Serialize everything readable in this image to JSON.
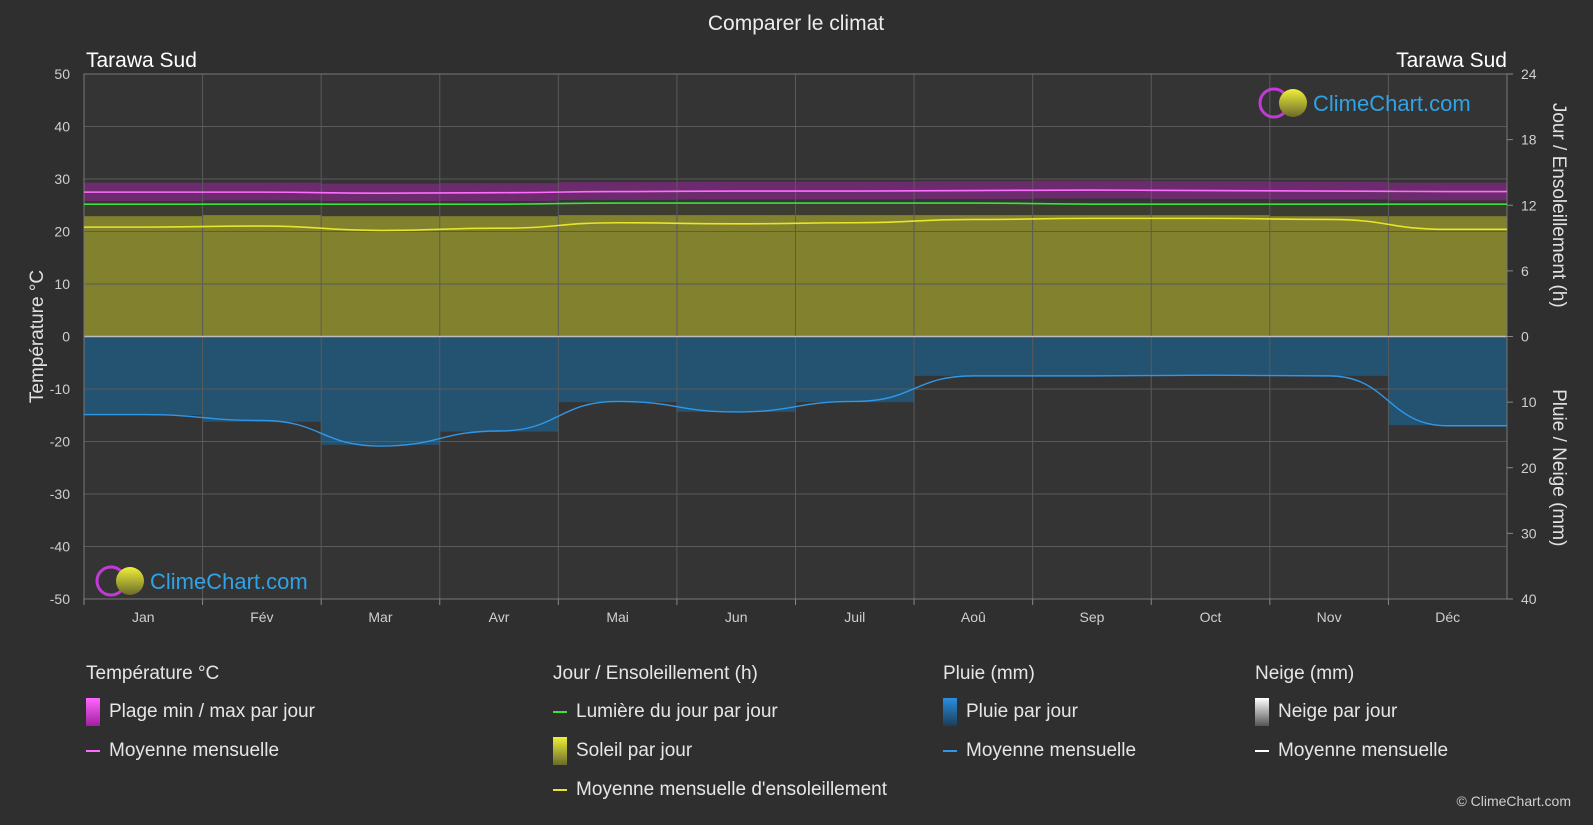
{
  "title": "Comparer le climat",
  "location_left": "Tarawa Sud",
  "location_right": "Tarawa Sud",
  "watermark": "ClimeChart.com",
  "copyright": "© ClimeChart.com",
  "chart_data": {
    "type": "line",
    "x": [
      "Jan",
      "Fév",
      "Mar",
      "Avr",
      "Mai",
      "Jun",
      "Juil",
      "Aoû",
      "Sep",
      "Oct",
      "Nov",
      "Déc"
    ],
    "y_left": {
      "label": "Température °C",
      "range": [
        -50,
        50
      ],
      "ticks": [
        50,
        40,
        30,
        20,
        10,
        0,
        -10,
        -20,
        -30,
        -40,
        -50
      ]
    },
    "y_right_top": {
      "label": "Jour / Ensoleillement (h)",
      "range": [
        0,
        24
      ],
      "ticks": [
        24,
        18,
        12,
        6,
        0
      ]
    },
    "y_right_bottom": {
      "label": "Pluie / Neige (mm)",
      "range": [
        0,
        40
      ],
      "ticks": [
        0,
        10,
        20,
        30,
        40
      ]
    },
    "grid": true,
    "series": [
      {
        "name": "Plage min / max par jour",
        "unit": "°C",
        "min": [
          25.8,
          25.9,
          25.8,
          25.8,
          26.0,
          26.1,
          26.1,
          26.2,
          26.3,
          26.2,
          26.1,
          25.9
        ],
        "max": [
          29.3,
          29.3,
          29.1,
          29.2,
          29.4,
          29.5,
          29.5,
          29.6,
          29.7,
          29.6,
          29.5,
          29.3
        ]
      },
      {
        "name": "Moyenne mensuelle",
        "unit": "°C",
        "values": [
          27.5,
          27.5,
          27.3,
          27.4,
          27.6,
          27.7,
          27.7,
          27.8,
          27.9,
          27.8,
          27.7,
          27.6
        ]
      },
      {
        "name": "Lumière du jour par jour",
        "unit": "h",
        "values": [
          12.1,
          12.1,
          12.1,
          12.1,
          12.2,
          12.2,
          12.2,
          12.2,
          12.1,
          12.1,
          12.1,
          12.1
        ]
      },
      {
        "name": "Soleil par jour",
        "unit": "h",
        "values": [
          11.0,
          11.1,
          11.0,
          11.0,
          11.1,
          11.1,
          11.1,
          11.1,
          11.1,
          11.1,
          11.0,
          11.0
        ]
      },
      {
        "name": "Moyenne mensuelle d'ensoleillement",
        "unit": "h",
        "values": [
          10.0,
          10.1,
          9.7,
          9.9,
          10.4,
          10.3,
          10.4,
          10.7,
          10.8,
          10.8,
          10.7,
          9.8
        ]
      },
      {
        "name": "Pluie par jour",
        "unit": "mm",
        "values": [
          12,
          13,
          16.5,
          14.5,
          10,
          11.5,
          10,
          6,
          6,
          6,
          6,
          13.5
        ]
      },
      {
        "name": "Moyenne mensuelle",
        "unit": "mm",
        "values": [
          11.9,
          12.8,
          16.7,
          14.4,
          9.9,
          11.5,
          9.9,
          6.0,
          6.0,
          5.9,
          6.0,
          13.6
        ]
      },
      {
        "name": "Neige par jour",
        "unit": "mm",
        "values": [
          0,
          0,
          0,
          0,
          0,
          0,
          0,
          0,
          0,
          0,
          0,
          0
        ]
      },
      {
        "name": "Moyenne mensuelle",
        "unit": "mm",
        "values": [
          0,
          0,
          0,
          0,
          0,
          0,
          0,
          0,
          0,
          0,
          0,
          0
        ]
      }
    ]
  },
  "legend": {
    "temperature": {
      "title": "Température °C",
      "items": [
        "Plage min / max par jour",
        "Moyenne mensuelle"
      ]
    },
    "sunshine": {
      "title": "Jour / Ensoleillement (h)",
      "items": [
        "Lumière du jour par jour",
        "Soleil par jour",
        "Moyenne mensuelle d'ensoleillement"
      ]
    },
    "rain": {
      "title": "Pluie (mm)",
      "items": [
        "Pluie par jour",
        "Moyenne mensuelle"
      ]
    },
    "snow": {
      "title": "Neige (mm)",
      "items": [
        "Neige par jour",
        "Moyenne mensuelle"
      ]
    }
  },
  "colors": {
    "background": "#2f2f2f",
    "temp_range": "#d81ed8",
    "temp_mean": "#ff6cff",
    "daylight": "#3ee03e",
    "sunshine_fill": "#8f8f2e",
    "sunshine_mean": "#e6e62a",
    "rain_fill": "#1f5c85",
    "rain_mean": "#2f97e8",
    "snow_mean": "#ffffff",
    "watermark_text": "#2fa3e6"
  }
}
